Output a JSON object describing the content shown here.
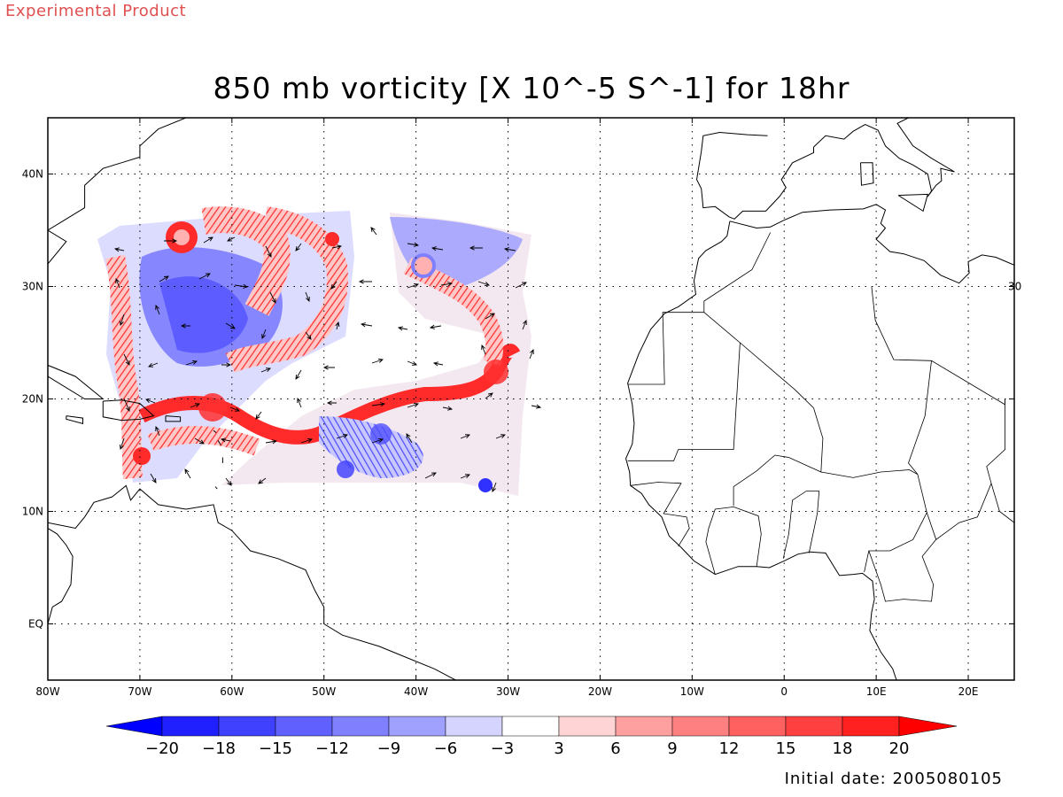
{
  "corner_label": "Experimental Product",
  "title": "850 mb vorticity [X 10^-5 S^-1] for 18hr",
  "footer": "Initial date: 2005080105",
  "map": {
    "lon_range": [
      -80,
      25
    ],
    "lat_range": [
      -5,
      45
    ],
    "lon_ticks": [
      {
        "value": -80,
        "label": "80W"
      },
      {
        "value": -70,
        "label": "70W"
      },
      {
        "value": -60,
        "label": "60W"
      },
      {
        "value": -50,
        "label": "50W"
      },
      {
        "value": -40,
        "label": "40W"
      },
      {
        "value": -30,
        "label": "30W"
      },
      {
        "value": -20,
        "label": "20W"
      },
      {
        "value": -10,
        "label": "10W"
      },
      {
        "value": 0,
        "label": "0"
      },
      {
        "value": 10,
        "label": "10E"
      },
      {
        "value": 20,
        "label": "20E"
      }
    ],
    "lat_ticks": [
      {
        "value": 40,
        "label": "40N"
      },
      {
        "value": 30,
        "label": "30N"
      },
      {
        "value": 20,
        "label": "20N"
      },
      {
        "value": 10,
        "label": "10N"
      },
      {
        "value": 0,
        "label": "EQ"
      }
    ],
    "grid": true,
    "right_edge_label": "30"
  },
  "colorbar": {
    "labels": [
      "-20",
      "-18",
      "-15",
      "-12",
      "-9",
      "-6",
      "-3",
      "3",
      "6",
      "9",
      "12",
      "15",
      "18",
      "20"
    ],
    "colors": [
      "#2020ff",
      "#4040ff",
      "#6060ff",
      "#8080ff",
      "#a0a0ff",
      "#d4d4ff",
      "#ffffff",
      "#ffd4d4",
      "#ffa0a0",
      "#ff8080",
      "#ff6060",
      "#ff4040",
      "#ff2020"
    ],
    "min_color": "#0000ff",
    "max_color": "#ff0000"
  },
  "palette": {
    "coast": "#000000",
    "grid": "#000000"
  }
}
